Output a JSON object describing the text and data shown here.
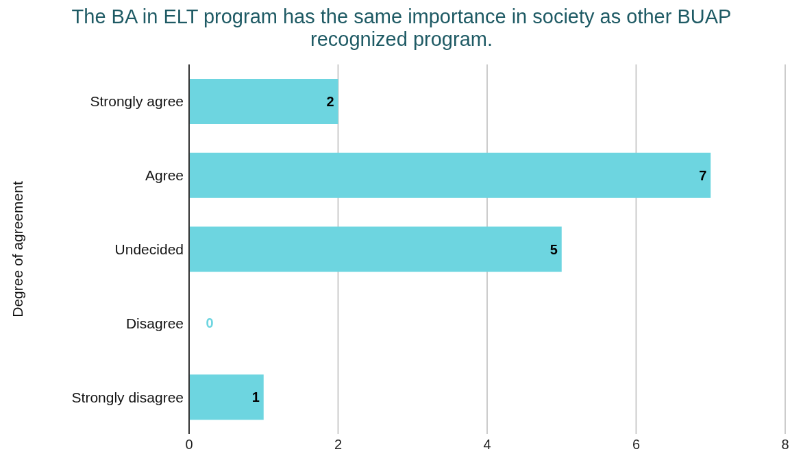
{
  "chart_data": {
    "type": "bar",
    "orientation": "horizontal",
    "title": "The BA in ELT program has the same importance in society as other BUAP recognized program.",
    "ylabel": "Degree of agreement",
    "categories": [
      "Strongly agree",
      "Agree",
      "Undecided",
      "Disagree",
      "Strongly disagree"
    ],
    "values": [
      2,
      7,
      5,
      0,
      1
    ],
    "color": "#6dd5e0",
    "xlim": [
      0,
      8
    ],
    "xticks": [
      0,
      2,
      4,
      6,
      8
    ],
    "grid": "x",
    "data_labels": true,
    "legend": false
  }
}
